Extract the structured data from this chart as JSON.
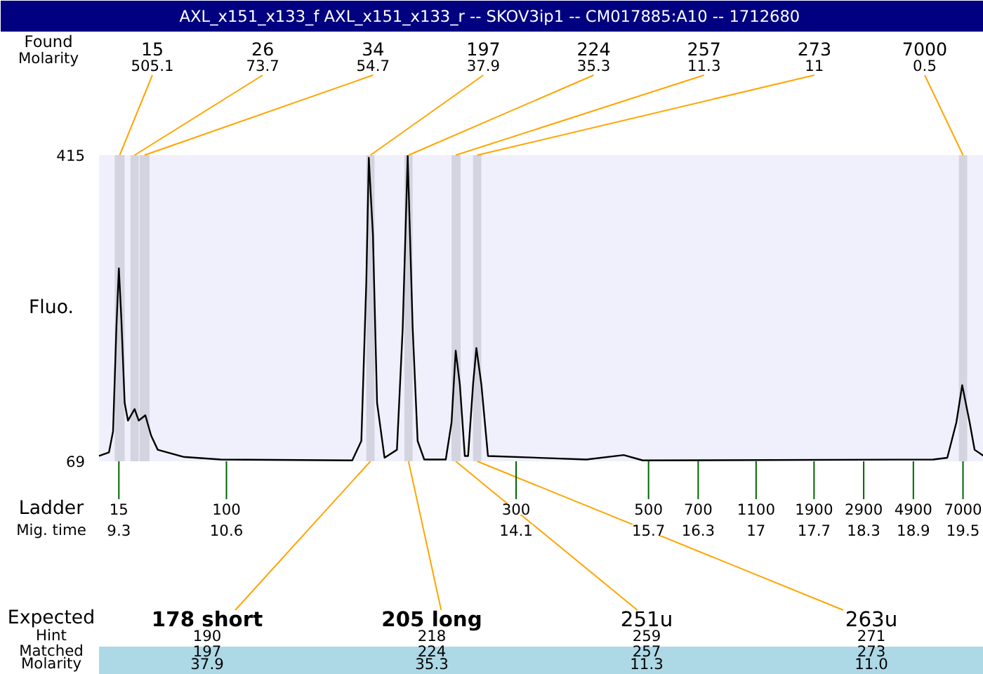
{
  "chart_data": {
    "type": "line",
    "title": "AXL_x151_x133_f  AXL_x151_x133_r -- SKOV3ip1 -- CM017885:A10 -- 1712680",
    "ylabel": "Fluo.",
    "xlabel": "Mig. time",
    "x": [
      9.06,
      9.18,
      9.23,
      9.27,
      9.3,
      9.33,
      9.37,
      9.41,
      9.49,
      9.54,
      9.62,
      9.69,
      9.77,
      10.08,
      10.53,
      12.12,
      12.23,
      12.29,
      12.32,
      12.37,
      12.42,
      12.51,
      12.66,
      12.73,
      12.79,
      12.85,
      12.91,
      12.99,
      13.25,
      13.32,
      13.37,
      13.42,
      13.48,
      13.52,
      13.58,
      13.62,
      13.68,
      13.76,
      14.95,
      15.4,
      15.63,
      19.14,
      19.31,
      19.42,
      19.49,
      19.58,
      19.64,
      19.75
    ],
    "series": [
      {
        "color": "#000000",
        "values": [
          75,
          79,
          103,
          220,
          287,
          230,
          135,
          115,
          128,
          115,
          121,
          98,
          82,
          74,
          71,
          70,
          92,
          272,
          412,
          325,
          135,
          73,
          82,
          220,
          414,
          220,
          92,
          71,
          71,
          113,
          194,
          156,
          75,
          75,
          156,
          197,
          156,
          75,
          71,
          76,
          70,
          71,
          73,
          113,
          155,
          113,
          82,
          75
        ]
      }
    ],
    "xlim": [
      9.06,
      19.75
    ],
    "ylim": [
      69,
      415
    ],
    "yticks": [
      69,
      415
    ],
    "xticks": [
      9.3,
      10.6,
      14.1,
      15.7,
      16.3,
      17,
      17.7,
      18.3,
      18.9,
      19.5
    ],
    "bands": [
      {
        "axis": "x",
        "from": 9.25,
        "to": 9.37,
        "label": "15",
        "color": "#d4d4e0"
      },
      {
        "axis": "x",
        "from": 9.44,
        "to": 9.54,
        "label": "26",
        "color": "#d4d4e0"
      },
      {
        "axis": "x",
        "from": 9.55,
        "to": 9.67,
        "label": "34",
        "color": "#d4d4e0"
      },
      {
        "axis": "x",
        "from": 12.29,
        "to": 12.39,
        "label": "197",
        "color": "#d4d4e0"
      },
      {
        "axis": "x",
        "from": 12.75,
        "to": 12.85,
        "label": "224",
        "color": "#d4d4e0"
      },
      {
        "axis": "x",
        "from": 13.32,
        "to": 13.43,
        "label": "257",
        "color": "#d4d4e0"
      },
      {
        "axis": "x",
        "from": 13.58,
        "to": 13.68,
        "label": "273",
        "color": "#d4d4e0"
      },
      {
        "axis": "x",
        "from": 19.45,
        "to": 19.55,
        "label": "7000",
        "color": "#d4d4e0"
      }
    ],
    "annotations": [
      "Found",
      "Molarity",
      {
        "text": "505.1",
        "x": 9.31,
        "y": 415
      },
      {
        "text": "73.7",
        "x": 9.49,
        "y": 415
      },
      {
        "text": "54.7",
        "x": 9.61,
        "y": 415
      },
      {
        "text": "37.9",
        "x": 12.34,
        "y": 415
      },
      {
        "text": "35.3",
        "x": 12.8,
        "y": 415
      },
      {
        "text": "11.3",
        "x": 13.37,
        "y": 415
      },
      {
        "text": "11",
        "x": 13.63,
        "y": 415
      },
      {
        "text": "0.5",
        "x": 19.5,
        "y": 415
      },
      "Ladder",
      "15",
      "100",
      "300",
      "500",
      "700",
      "1100",
      "1900",
      "2900",
      "4900",
      "7000",
      "Expected",
      "Hint",
      "Matched",
      "Molarity",
      {
        "text": "178 short",
        "x": 12.34,
        "y": 69
      },
      "190",
      "197",
      "37.9",
      {
        "text": "205 long",
        "x": 12.8,
        "y": 69
      },
      "218",
      "224",
      "35.3",
      {
        "text": "251u",
        "x": 13.37,
        "y": 69
      },
      "259",
      "257",
      "11.3",
      {
        "text": "263u",
        "x": 13.63,
        "y": 69
      },
      "271",
      "273",
      "11.0"
    ]
  }
}
